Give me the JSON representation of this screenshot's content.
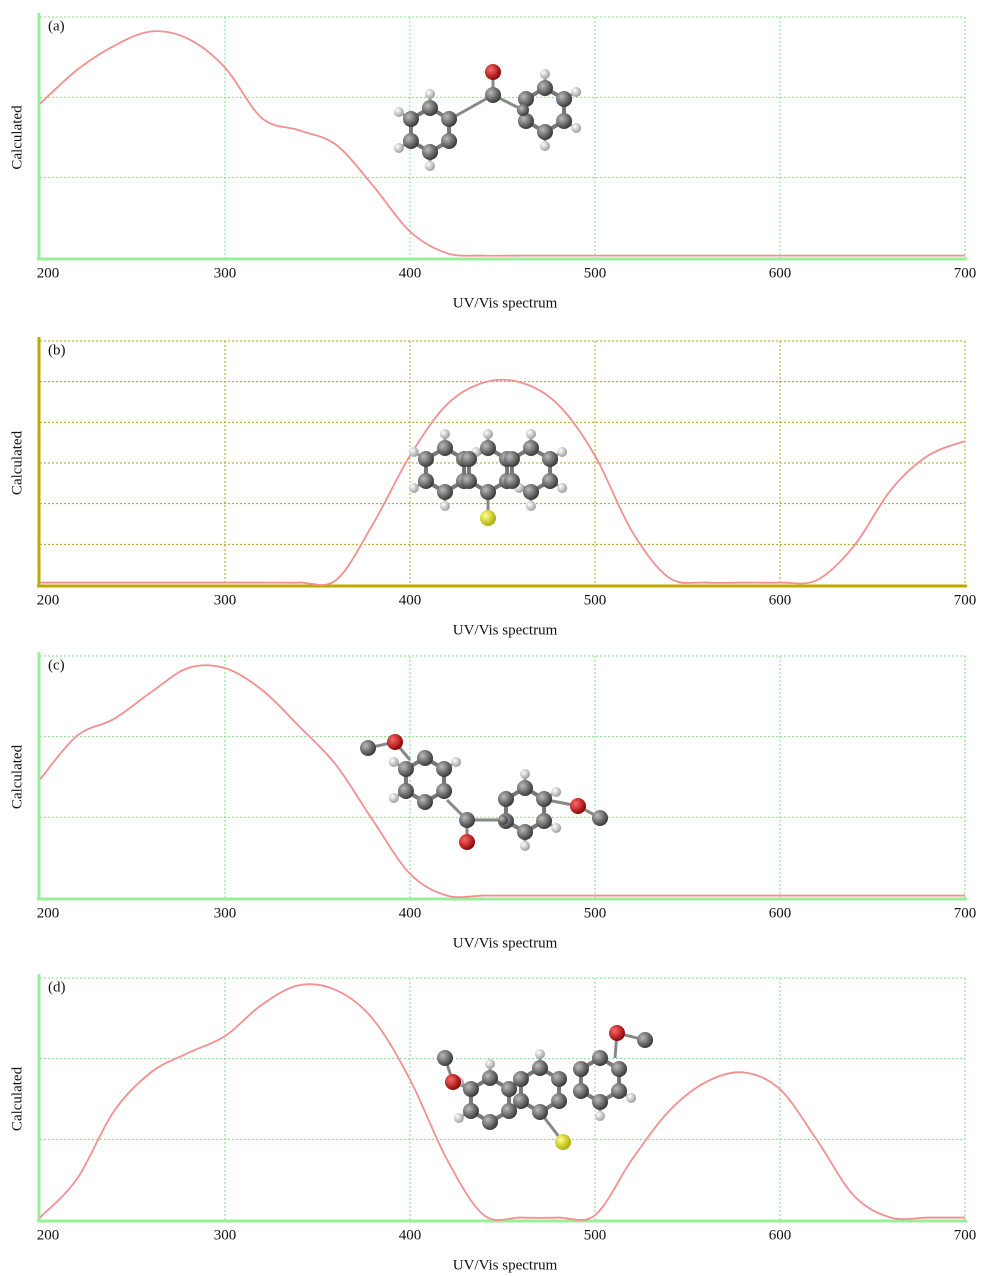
{
  "chart_data": [
    {
      "type": "line",
      "label": "(a)",
      "ylabel": "Calculated",
      "xlabel": "UV/Vis spectrum",
      "x": [
        200,
        220,
        240,
        260,
        280,
        300,
        320,
        340,
        360,
        380,
        400,
        420,
        440,
        460,
        480,
        500,
        520,
        540,
        560,
        580,
        600,
        620,
        640,
        660,
        680,
        700
      ],
      "series": [
        {
          "color": "#f29090",
          "values": [
            0.64,
            0.78,
            0.88,
            0.94,
            0.91,
            0.79,
            0.58,
            0.53,
            0.47,
            0.3,
            0.11,
            0.02,
            0.01,
            0.01,
            0.01,
            0.01,
            0.01,
            0.01,
            0.01,
            0.01,
            0.01,
            0.01,
            0.01,
            0.01,
            0.01,
            0.01
          ]
        }
      ],
      "xlim": [
        200,
        700
      ],
      "ylim": [
        0,
        1
      ],
      "xticks": [
        200,
        300,
        400,
        500,
        600,
        700
      ],
      "y_divisions": 3,
      "axis_color": "#99ee99",
      "grid_color": "#88dd88"
    },
    {
      "type": "line",
      "label": "(b)",
      "ylabel": "Calculated",
      "xlabel": "UV/Vis spectrum",
      "x": [
        200,
        220,
        240,
        260,
        280,
        300,
        320,
        340,
        360,
        380,
        400,
        420,
        440,
        460,
        480,
        500,
        520,
        540,
        560,
        580,
        600,
        620,
        640,
        660,
        680,
        700
      ],
      "series": [
        {
          "color": "#f29090",
          "values": [
            0.01,
            0.01,
            0.01,
            0.01,
            0.01,
            0.01,
            0.01,
            0.01,
            0.02,
            0.25,
            0.53,
            0.74,
            0.83,
            0.83,
            0.74,
            0.53,
            0.22,
            0.03,
            0.01,
            0.01,
            0.01,
            0.02,
            0.16,
            0.39,
            0.53,
            0.59
          ]
        }
      ],
      "xlim": [
        200,
        700
      ],
      "ylim": [
        0,
        1
      ],
      "xticks": [
        200,
        300,
        400,
        500,
        600,
        700
      ],
      "y_divisions": 6,
      "axis_color": "#c0a800",
      "grid_color": "#b0a020"
    },
    {
      "type": "line",
      "label": "(c)",
      "ylabel": "Calculated",
      "xlabel": "UV/Vis spectrum",
      "x": [
        200,
        220,
        240,
        260,
        280,
        300,
        320,
        340,
        360,
        380,
        400,
        420,
        440,
        460,
        480,
        500,
        520,
        540,
        560,
        580,
        600,
        620,
        640,
        660,
        680,
        700
      ],
      "series": [
        {
          "color": "#f29090",
          "values": [
            0.49,
            0.67,
            0.74,
            0.85,
            0.95,
            0.95,
            0.86,
            0.71,
            0.55,
            0.32,
            0.1,
            0.01,
            0.01,
            0.01,
            0.01,
            0.01,
            0.01,
            0.01,
            0.01,
            0.01,
            0.01,
            0.01,
            0.01,
            0.01,
            0.01,
            0.01
          ]
        }
      ],
      "xlim": [
        200,
        700
      ],
      "ylim": [
        0,
        1
      ],
      "xticks": [
        200,
        300,
        400,
        500,
        600,
        700
      ],
      "y_divisions": 3,
      "axis_color": "#99ee99",
      "grid_color": "#88dd88"
    },
    {
      "type": "line",
      "label": "(d)",
      "ylabel": "Calculated",
      "xlabel": "UV/Vis spectrum",
      "x": [
        200,
        220,
        240,
        260,
        280,
        300,
        320,
        340,
        360,
        380,
        400,
        420,
        440,
        460,
        480,
        500,
        520,
        540,
        560,
        580,
        600,
        620,
        640,
        660,
        680,
        700
      ],
      "series": [
        {
          "color": "#f29090",
          "values": [
            0.01,
            0.17,
            0.45,
            0.61,
            0.69,
            0.76,
            0.89,
            0.97,
            0.95,
            0.83,
            0.58,
            0.25,
            0.02,
            0.01,
            0.01,
            0.02,
            0.25,
            0.45,
            0.57,
            0.61,
            0.54,
            0.33,
            0.1,
            0.01,
            0.01,
            0.01
          ]
        }
      ],
      "xlim": [
        200,
        700
      ],
      "ylim": [
        0,
        1
      ],
      "xticks": [
        200,
        300,
        400,
        500,
        600,
        700
      ],
      "y_divisions": 3,
      "axis_color": "#99ee99",
      "grid_color": "#88dd88"
    }
  ]
}
